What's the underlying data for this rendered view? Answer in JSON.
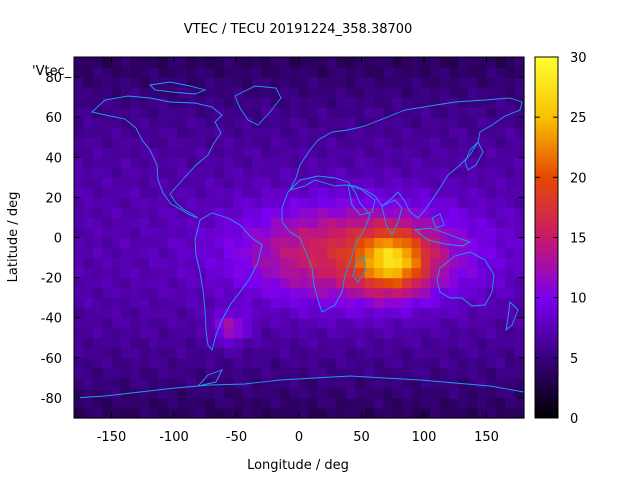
{
  "chart_data": {
    "type": "heatmap",
    "title": "VTEC / TECU 20191224_358.38700",
    "key_label": "'Vtec_",
    "xlabel": "Longitude / deg",
    "ylabel": "Latitude / deg",
    "xlim": [
      -180,
      180
    ],
    "ylim": [
      -90,
      90
    ],
    "xticks": [
      -150,
      -100,
      -50,
      0,
      50,
      100,
      150
    ],
    "yticks": [
      -80,
      -60,
      -40,
      -20,
      0,
      20,
      40,
      60,
      80
    ],
    "colorbar": {
      "min": 0,
      "max": 30,
      "ticks": [
        0,
        5,
        10,
        15,
        20,
        25,
        30
      ]
    },
    "features": {
      "background_tecu": 7,
      "polar_tecu": 4,
      "main_peak": {
        "lon": 75,
        "lat": -12,
        "value": 28
      },
      "equatorial_band": {
        "lon_range": [
          -55,
          140
        ],
        "lat_range": [
          -35,
          20
        ],
        "value": 17
      },
      "secondary_peak": {
        "lon": -55,
        "lat": -45,
        "value": 16
      }
    },
    "colors": {
      "scale": [
        "#000000",
        "#3a0080",
        "#7a00f0",
        "#c81a6a",
        "#e64a00",
        "#f8c000",
        "#ffff30"
      ],
      "coastline": "#1aa0e8"
    }
  }
}
